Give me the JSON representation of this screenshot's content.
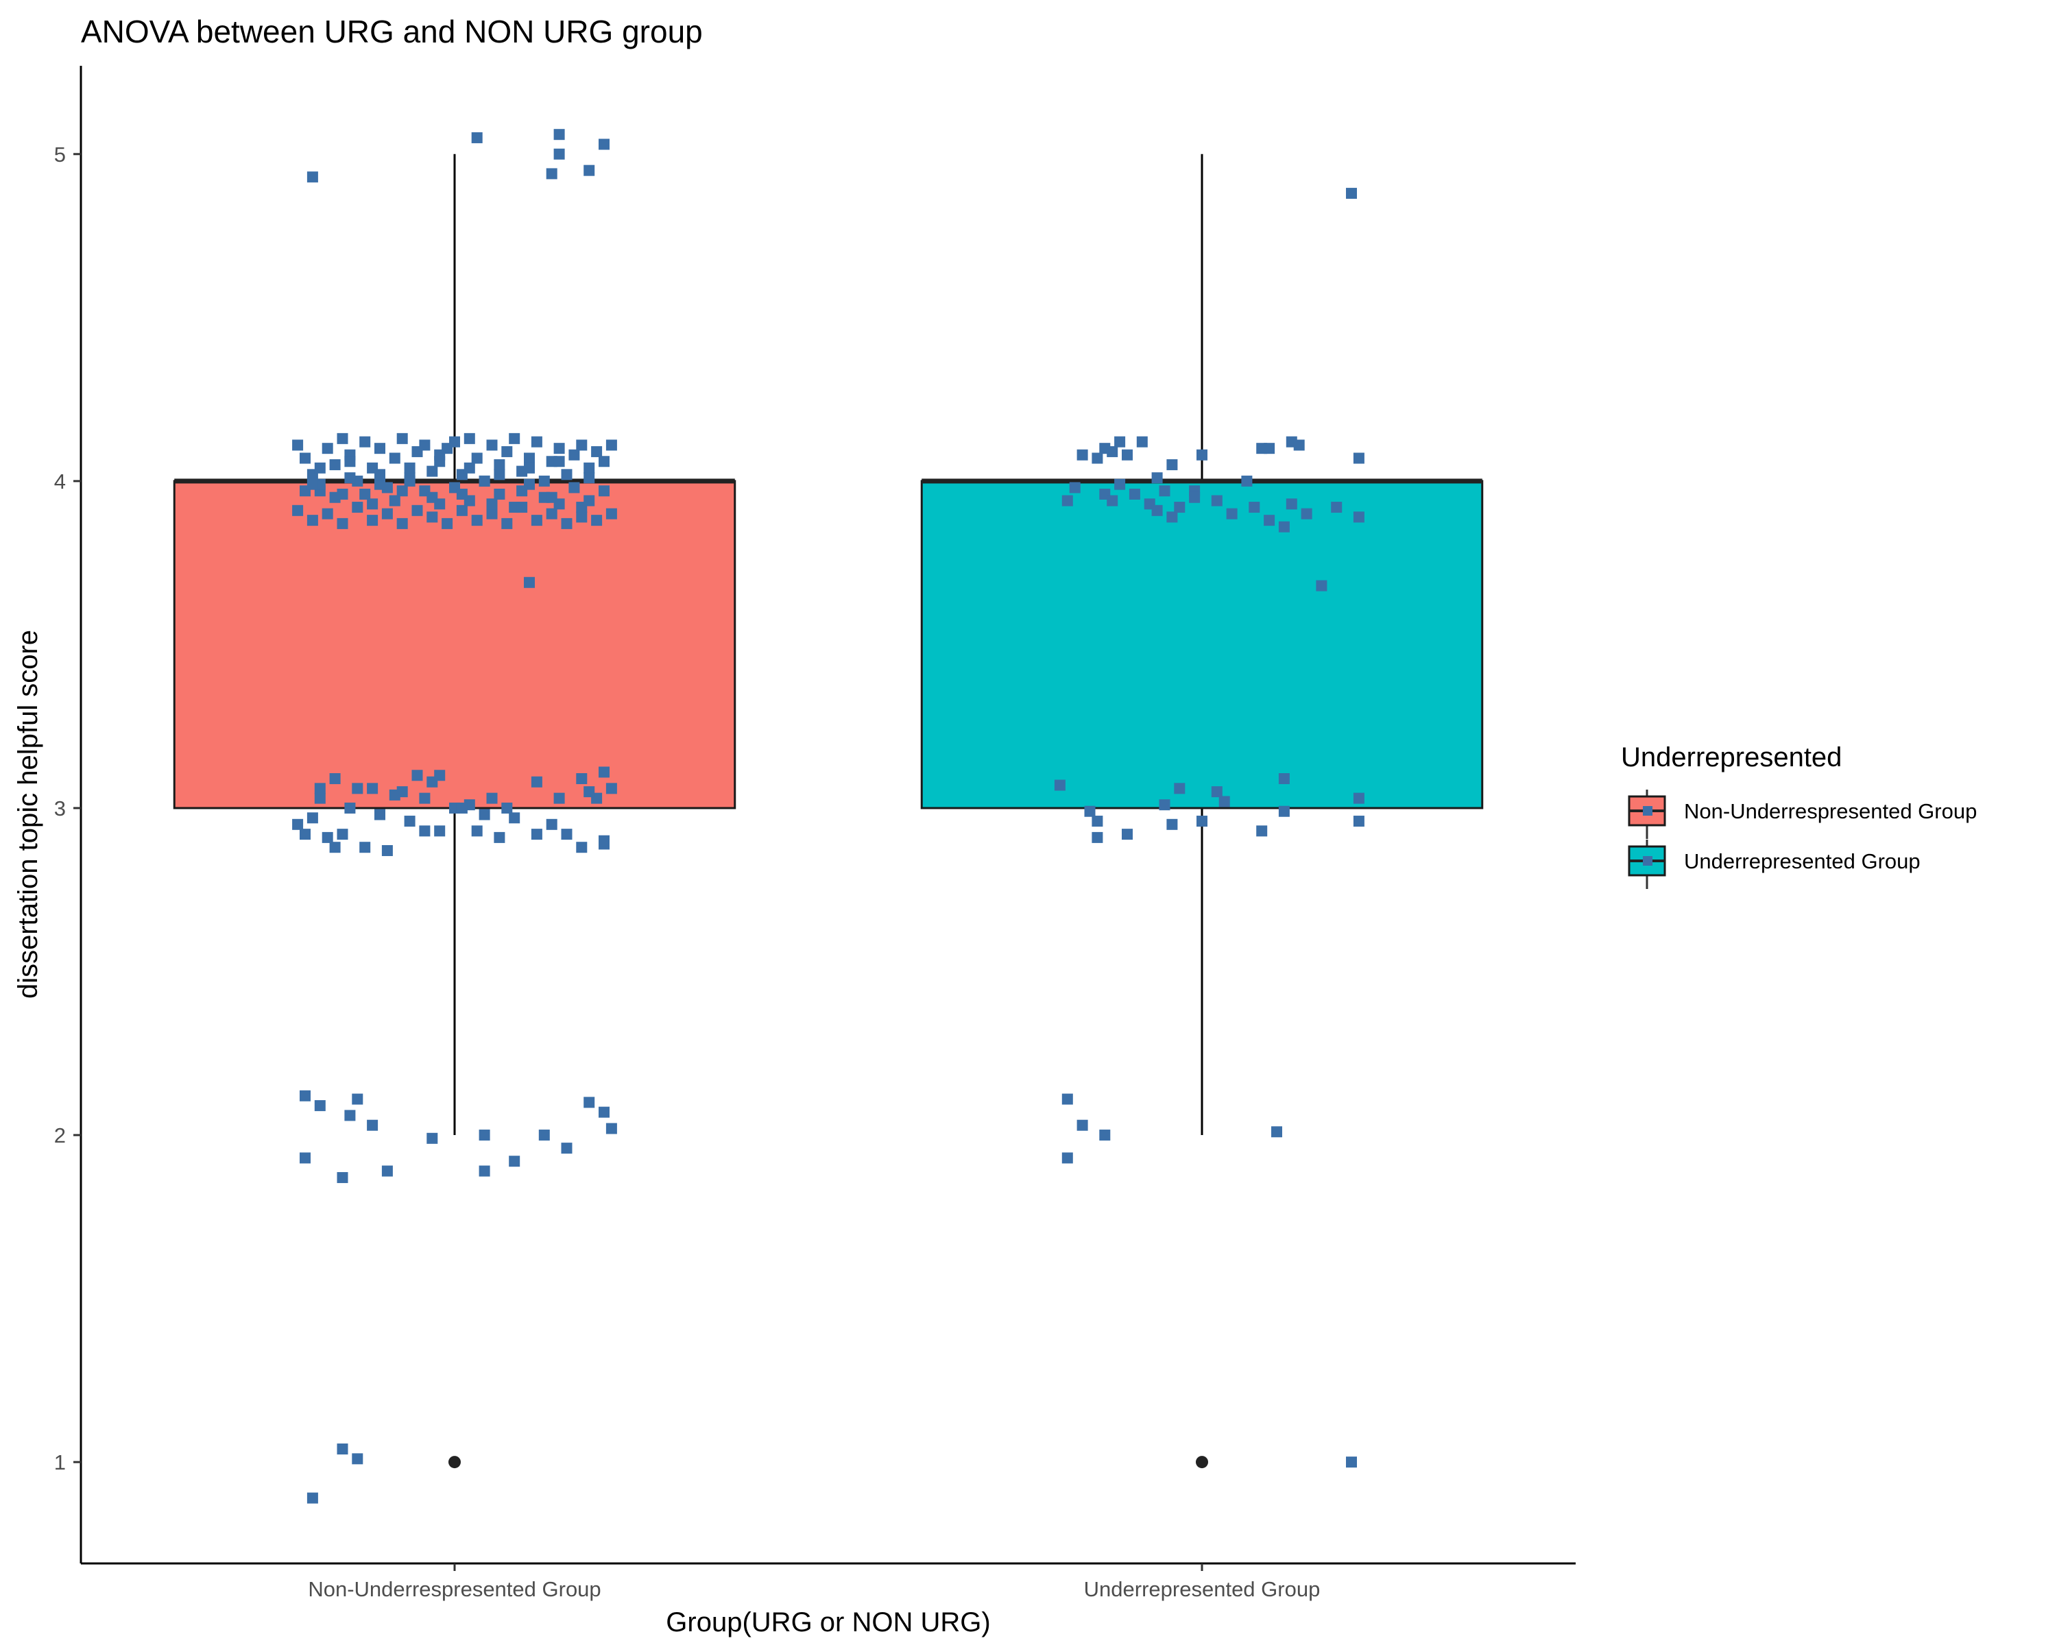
{
  "chart_data": {
    "type": "box",
    "title": "ANOVA between URG and NON URG group",
    "xlabel": "Group(URG or NON URG)",
    "ylabel": "dissertation topic helpful score",
    "ylim": [
      0.69,
      5.27
    ],
    "yticks": [
      1,
      2,
      3,
      4,
      5
    ],
    "grid": false,
    "legend": {
      "title": "Underrepresented",
      "placement": "right",
      "entries": [
        {
          "label": "Non-Underrespresented Group",
          "color": "#F8766D"
        },
        {
          "label": "Underrepresented Group",
          "color": "#00BFC4"
        }
      ]
    },
    "categories": [
      "Non-Underrespresented Group",
      "Underrepresented Group"
    ],
    "boxes": [
      {
        "category": "Non-Underrespresented Group",
        "min": 2,
        "q1": 3,
        "median": 4,
        "q3": 4,
        "max": 5,
        "outliers": [
          1
        ],
        "color": "#F8766D"
      },
      {
        "category": "Underrepresented Group",
        "min": 2,
        "q1": 3,
        "median": 4,
        "q3": 4,
        "max": 5,
        "outliers": [
          1
        ],
        "color": "#00BFC4"
      }
    ],
    "jitter_color": "#3B6FA8",
    "jitter": [
      {
        "category": 0,
        "points": [
          [
            -0.19,
            0.89
          ],
          [
            -0.15,
            1.04
          ],
          [
            -0.13,
            1.01
          ],
          [
            -0.2,
            1.93
          ],
          [
            -0.15,
            1.87
          ],
          [
            -0.09,
            1.89
          ],
          [
            -0.03,
            1.99
          ],
          [
            0.04,
            1.89
          ],
          [
            0.08,
            1.92
          ],
          [
            0.12,
            2.0
          ],
          [
            0.15,
            1.96
          ],
          [
            0.21,
            2.02
          ],
          [
            -0.2,
            2.12
          ],
          [
            -0.18,
            2.09
          ],
          [
            -0.14,
            2.06
          ],
          [
            -0.13,
            2.11
          ],
          [
            -0.11,
            2.03
          ],
          [
            0.04,
            2.0
          ],
          [
            0.18,
            2.1
          ],
          [
            0.2,
            2.07
          ],
          [
            -0.21,
            2.95
          ],
          [
            -0.2,
            2.92
          ],
          [
            -0.19,
            2.97
          ],
          [
            -0.18,
            3.03
          ],
          [
            -0.17,
            2.91
          ],
          [
            -0.16,
            2.88
          ],
          [
            -0.15,
            2.92
          ],
          [
            -0.14,
            3.0
          ],
          [
            -0.12,
            2.88
          ],
          [
            -0.1,
            2.98
          ],
          [
            -0.09,
            2.87
          ],
          [
            -0.07,
            3.05
          ],
          [
            -0.06,
            2.96
          ],
          [
            -0.04,
            2.93
          ],
          [
            -0.03,
            3.08
          ],
          [
            -0.02,
            2.93
          ],
          [
            0.0,
            3.0
          ],
          [
            0.02,
            3.01
          ],
          [
            0.03,
            2.93
          ],
          [
            0.05,
            3.03
          ],
          [
            0.06,
            2.91
          ],
          [
            0.08,
            2.97
          ],
          [
            0.11,
            2.92
          ],
          [
            0.13,
            2.95
          ],
          [
            0.15,
            2.92
          ],
          [
            0.17,
            2.88
          ],
          [
            0.19,
            3.03
          ],
          [
            0.2,
            2.89
          ],
          [
            0.2,
            3.11
          ],
          [
            0.2,
            2.9
          ],
          [
            0.21,
            3.06
          ],
          [
            -0.18,
            3.06
          ],
          [
            -0.16,
            3.09
          ],
          [
            -0.13,
            3.06
          ],
          [
            -0.11,
            3.06
          ],
          [
            -0.08,
            3.04
          ],
          [
            -0.05,
            3.1
          ],
          [
            -0.04,
            3.03
          ],
          [
            -0.02,
            3.1
          ],
          [
            0.01,
            3.0
          ],
          [
            0.04,
            2.98
          ],
          [
            0.07,
            3.0
          ],
          [
            0.11,
            3.08
          ],
          [
            0.14,
            3.03
          ],
          [
            0.17,
            3.09
          ],
          [
            0.18,
            3.05
          ],
          [
            0.1,
            3.69
          ],
          [
            -0.21,
            4.11
          ],
          [
            -0.2,
            4.07
          ],
          [
            -0.19,
            4.02
          ],
          [
            -0.18,
            3.97
          ],
          [
            -0.17,
            4.1
          ],
          [
            -0.16,
            4.05
          ],
          [
            -0.15,
            4.13
          ],
          [
            -0.14,
            4.08
          ],
          [
            -0.13,
            4.0
          ],
          [
            -0.12,
            4.12
          ],
          [
            -0.11,
            4.04
          ],
          [
            -0.1,
            4.1
          ],
          [
            -0.09,
            3.98
          ],
          [
            -0.08,
            4.07
          ],
          [
            -0.07,
            4.13
          ],
          [
            -0.06,
            4.01
          ],
          [
            -0.05,
            4.09
          ],
          [
            -0.04,
            4.11
          ],
          [
            -0.03,
            4.03
          ],
          [
            -0.02,
            4.06
          ],
          [
            -0.01,
            4.1
          ],
          [
            0.0,
            4.12
          ],
          [
            0.01,
            4.02
          ],
          [
            0.02,
            4.13
          ],
          [
            0.03,
            4.07
          ],
          [
            0.04,
            4.0
          ],
          [
            0.05,
            4.11
          ],
          [
            0.06,
            4.05
          ],
          [
            0.07,
            4.09
          ],
          [
            0.08,
            4.13
          ],
          [
            0.09,
            4.03
          ],
          [
            0.1,
            4.07
          ],
          [
            0.11,
            4.12
          ],
          [
            0.12,
            4.0
          ],
          [
            0.13,
            4.06
          ],
          [
            0.14,
            4.1
          ],
          [
            0.15,
            4.02
          ],
          [
            0.16,
            4.08
          ],
          [
            0.17,
            4.11
          ],
          [
            0.18,
            4.04
          ],
          [
            0.19,
            4.09
          ],
          [
            0.2,
            4.06
          ],
          [
            0.21,
            4.11
          ],
          [
            -0.2,
            3.97
          ],
          [
            -0.18,
            3.99
          ],
          [
            -0.16,
            3.95
          ],
          [
            -0.14,
            4.01
          ],
          [
            -0.12,
            3.96
          ],
          [
            -0.1,
            3.99
          ],
          [
            -0.08,
            3.94
          ],
          [
            -0.06,
            4.0
          ],
          [
            -0.04,
            3.97
          ],
          [
            -0.02,
            3.93
          ],
          [
            0.0,
            3.98
          ],
          [
            0.02,
            3.94
          ],
          [
            0.04,
            4.0
          ],
          [
            0.06,
            3.96
          ],
          [
            0.08,
            3.92
          ],
          [
            0.1,
            3.99
          ],
          [
            0.12,
            3.95
          ],
          [
            0.14,
            3.93
          ],
          [
            0.16,
            3.98
          ],
          [
            0.18,
            3.94
          ],
          [
            0.2,
            3.97
          ],
          [
            -0.21,
            3.91
          ],
          [
            -0.19,
            3.88
          ],
          [
            -0.17,
            3.9
          ],
          [
            -0.15,
            3.87
          ],
          [
            -0.13,
            3.92
          ],
          [
            -0.11,
            3.88
          ],
          [
            -0.09,
            3.9
          ],
          [
            -0.07,
            3.87
          ],
          [
            -0.05,
            3.91
          ],
          [
            -0.03,
            3.89
          ],
          [
            -0.01,
            3.87
          ],
          [
            0.01,
            3.91
          ],
          [
            0.03,
            3.88
          ],
          [
            0.05,
            3.9
          ],
          [
            0.07,
            3.87
          ],
          [
            0.09,
            3.92
          ],
          [
            0.11,
            3.88
          ],
          [
            0.13,
            3.9
          ],
          [
            0.15,
            3.87
          ],
          [
            0.17,
            3.89
          ],
          [
            0.19,
            3.88
          ],
          [
            0.21,
            3.9
          ],
          [
            -0.18,
            4.04
          ],
          [
            -0.14,
            4.06
          ],
          [
            -0.1,
            4.02
          ],
          [
            -0.06,
            4.04
          ],
          [
            -0.02,
            4.08
          ],
          [
            0.02,
            4.04
          ],
          [
            0.06,
            4.02
          ],
          [
            0.1,
            4.04
          ],
          [
            0.14,
            4.06
          ],
          [
            0.18,
            4.01
          ],
          [
            -0.19,
            3.99
          ],
          [
            -0.15,
            3.96
          ],
          [
            -0.11,
            3.93
          ],
          [
            -0.07,
            3.97
          ],
          [
            -0.03,
            3.95
          ],
          [
            0.01,
            3.96
          ],
          [
            0.05,
            3.93
          ],
          [
            0.09,
            3.97
          ],
          [
            0.13,
            3.95
          ],
          [
            0.17,
            3.92
          ],
          [
            -0.19,
            4.93
          ],
          [
            0.03,
            5.05
          ],
          [
            0.13,
            4.94
          ],
          [
            0.14,
            5.06
          ],
          [
            0.14,
            5.0
          ],
          [
            0.18,
            4.95
          ],
          [
            0.2,
            5.03
          ]
        ]
      },
      {
        "category": 1,
        "points": [
          [
            0.2,
            1.0
          ],
          [
            -0.18,
            1.93
          ],
          [
            -0.13,
            2.0
          ],
          [
            0.1,
            2.01
          ],
          [
            -0.16,
            2.03
          ],
          [
            -0.18,
            2.11
          ],
          [
            -0.19,
            3.07
          ],
          [
            -0.15,
            2.99
          ],
          [
            -0.14,
            2.96
          ],
          [
            -0.14,
            2.91
          ],
          [
            -0.1,
            2.92
          ],
          [
            -0.05,
            3.01
          ],
          [
            -0.04,
            2.95
          ],
          [
            -0.03,
            3.06
          ],
          [
            0.0,
            2.96
          ],
          [
            0.02,
            3.05
          ],
          [
            0.03,
            3.02
          ],
          [
            0.08,
            2.93
          ],
          [
            0.11,
            2.99
          ],
          [
            0.11,
            3.09
          ],
          [
            0.21,
            2.96
          ],
          [
            0.21,
            3.03
          ],
          [
            -0.18,
            3.94
          ],
          [
            -0.17,
            3.98
          ],
          [
            -0.16,
            4.08
          ],
          [
            -0.14,
            4.07
          ],
          [
            -0.13,
            4.1
          ],
          [
            -0.13,
            3.96
          ],
          [
            -0.12,
            4.09
          ],
          [
            -0.12,
            3.94
          ],
          [
            -0.11,
            4.12
          ],
          [
            -0.11,
            3.99
          ],
          [
            -0.1,
            4.08
          ],
          [
            -0.09,
            3.96
          ],
          [
            -0.08,
            4.12
          ],
          [
            -0.07,
            3.93
          ],
          [
            -0.06,
            4.01
          ],
          [
            -0.06,
            3.91
          ],
          [
            -0.05,
            3.97
          ],
          [
            -0.04,
            3.89
          ],
          [
            -0.03,
            3.92
          ],
          [
            -0.01,
            3.97
          ],
          [
            -0.01,
            3.95
          ],
          [
            0.0,
            4.08
          ],
          [
            0.02,
            3.94
          ],
          [
            0.04,
            3.9
          ],
          [
            0.06,
            4.0
          ],
          [
            0.07,
            3.92
          ],
          [
            0.08,
            4.1
          ],
          [
            0.09,
            3.88
          ],
          [
            0.09,
            4.1
          ],
          [
            0.11,
            3.86
          ],
          [
            0.12,
            3.93
          ],
          [
            0.12,
            4.12
          ],
          [
            0.13,
            4.11
          ],
          [
            0.14,
            3.9
          ],
          [
            0.21,
            4.07
          ],
          [
            0.21,
            3.89
          ],
          [
            -0.04,
            4.05
          ],
          [
            0.18,
            3.92
          ],
          [
            0.16,
            3.68
          ],
          [
            0.2,
            4.88
          ]
        ]
      }
    ]
  }
}
